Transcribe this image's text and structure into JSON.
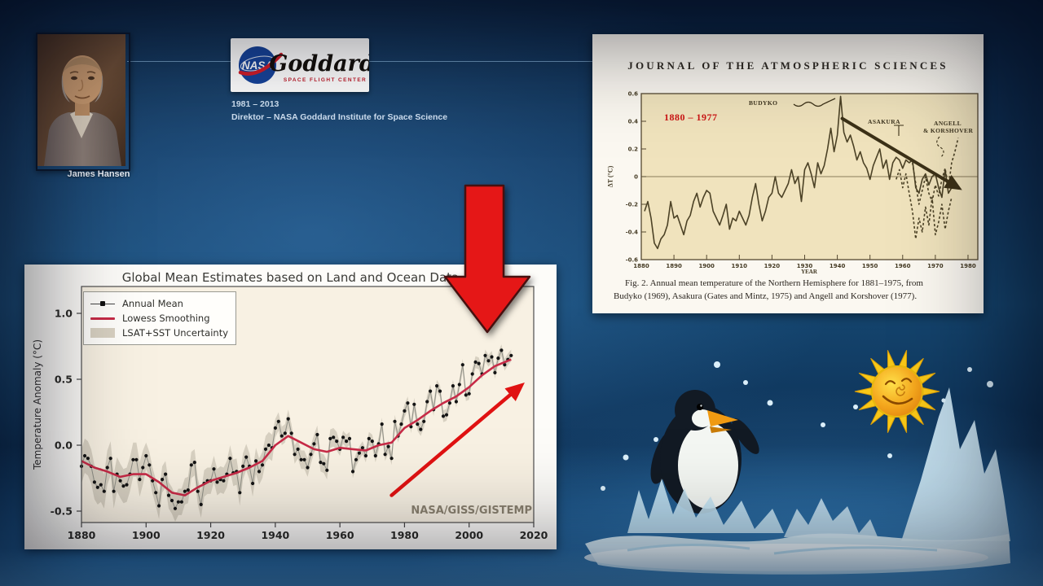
{
  "header": {
    "portrait_caption": "James Hansen",
    "logo_nasa": "NASA",
    "logo_goddard": "Goddard",
    "logo_sub": "SPACE FLIGHT CENTER",
    "tenure": "1981 – 2013",
    "role": "Direktor – NASA Goddard Institute for Space Science"
  },
  "journal": {
    "masthead": "JOURNAL OF THE ATMOSPHERIC SCIENCES",
    "range_label": "1880 – 1977",
    "label_budyko": "BUDYKO",
    "label_asakura": "ASAKURA",
    "label_angell_1": "ANGELL",
    "label_angell_2": "& KORSHOVER",
    "ylabel": "ΔT (°C)",
    "xlabel": "YEAR",
    "caption_1": "Fig. 2. Annual mean temperature of the Northern Hemisphere for 1881–1975, from",
    "caption_2": "Budyko (1969), Asakura (Gates and Mintz, 1975) and Angell and Korshover (1977)."
  },
  "gistemp": {
    "title": "Global Mean Estimates based on Land and Ocean Data",
    "legend_annual": "Annual Mean",
    "legend_lowess": "Lowess Smoothing",
    "legend_band": "LSAT+SST Uncertainty",
    "ylabel": "Temperature Anomaly (°C)",
    "watermark": "NASA/GISS/GISTEMP"
  },
  "chart_data": [
    {
      "id": "gistemp",
      "type": "line",
      "title": "Global Mean Estimates based on Land and Ocean Data",
      "xlabel": "",
      "ylabel": "Temperature Anomaly (°C)",
      "xlim": [
        1880,
        2020
      ],
      "ylim": [
        -0.61,
        1.22
      ],
      "grid": false,
      "legend_position": "upper left",
      "watermark": "NASA/GISS/GISTEMP",
      "xticks": [
        "1880",
        "1900",
        "1920",
        "1940",
        "1960",
        "1980",
        "2000",
        "2020"
      ],
      "yticks": [
        {
          "label": "1.0",
          "v": 1.0
        },
        {
          "label": "0.5",
          "v": 0.5
        },
        {
          "label": "0.0",
          "v": 0.0
        },
        {
          "label": "-0.5",
          "v": -0.5
        }
      ],
      "annual": {
        "name": "Annual Mean",
        "color": "#141414",
        "x_start": 1880,
        "values": [
          -0.16,
          -0.08,
          -0.1,
          -0.16,
          -0.28,
          -0.32,
          -0.3,
          -0.35,
          -0.17,
          -0.1,
          -0.35,
          -0.22,
          -0.27,
          -0.31,
          -0.3,
          -0.22,
          -0.11,
          -0.11,
          -0.26,
          -0.17,
          -0.08,
          -0.15,
          -0.27,
          -0.36,
          -0.46,
          -0.26,
          -0.22,
          -0.38,
          -0.42,
          -0.48,
          -0.43,
          -0.43,
          -0.35,
          -0.34,
          -0.15,
          -0.13,
          -0.35,
          -0.45,
          -0.29,
          -0.27,
          -0.27,
          -0.18,
          -0.28,
          -0.26,
          -0.27,
          -0.22,
          -0.1,
          -0.21,
          -0.2,
          -0.36,
          -0.16,
          -0.09,
          -0.16,
          -0.29,
          -0.12,
          -0.2,
          -0.15,
          -0.03,
          0.0,
          -0.02,
          0.13,
          0.18,
          0.07,
          0.09,
          0.2,
          0.09,
          -0.07,
          -0.03,
          -0.11,
          -0.11,
          -0.17,
          -0.07,
          0.01,
          0.08,
          -0.13,
          -0.14,
          -0.19,
          0.05,
          0.06,
          0.03,
          -0.03,
          0.06,
          0.03,
          0.05,
          -0.2,
          -0.11,
          -0.06,
          -0.02,
          -0.08,
          0.05,
          0.03,
          -0.08,
          0.01,
          0.16,
          -0.07,
          -0.01,
          -0.1,
          0.18,
          0.07,
          0.16,
          0.26,
          0.32,
          0.14,
          0.31,
          0.16,
          0.12,
          0.18,
          0.33,
          0.41,
          0.27,
          0.45,
          0.41,
          0.22,
          0.23,
          0.32,
          0.45,
          0.33,
          0.46,
          0.61,
          0.38,
          0.39,
          0.54,
          0.63,
          0.62,
          0.54,
          0.68,
          0.64,
          0.67,
          0.55,
          0.66,
          0.72,
          0.61,
          0.65,
          0.68
        ]
      },
      "lowess": {
        "name": "Lowess Smoothing",
        "color": "#c72b47",
        "x": [
          1880,
          1884,
          1888,
          1892,
          1896,
          1900,
          1904,
          1908,
          1912,
          1916,
          1920,
          1924,
          1928,
          1932,
          1936,
          1940,
          1944,
          1948,
          1952,
          1956,
          1960,
          1964,
          1968,
          1972,
          1976,
          1980,
          1984,
          1988,
          1992,
          1996,
          2000,
          2004,
          2008,
          2012,
          2013
        ],
        "values": [
          -0.12,
          -0.17,
          -0.2,
          -0.24,
          -0.22,
          -0.22,
          -0.28,
          -0.36,
          -0.38,
          -0.32,
          -0.27,
          -0.24,
          -0.21,
          -0.17,
          -0.12,
          0.0,
          0.07,
          0.02,
          -0.03,
          -0.05,
          -0.02,
          -0.03,
          -0.04,
          0.0,
          0.02,
          0.13,
          0.19,
          0.26,
          0.32,
          0.37,
          0.44,
          0.53,
          0.6,
          0.64,
          0.65
        ]
      },
      "uncertainty": {
        "name": "LSAT+SST Uncertainty",
        "color": "#d8d1c2",
        "halfwidth_breaks": [
          [
            1880,
            0.13
          ],
          [
            1900,
            0.1
          ],
          [
            1940,
            0.07
          ],
          [
            1960,
            0.05
          ],
          [
            1990,
            0.045
          ]
        ]
      },
      "trend_arrow": {
        "x1": 1976,
        "y1": -0.38,
        "x2": 2016,
        "y2": 0.45,
        "color": "#e01212"
      }
    },
    {
      "id": "budyko-fig2",
      "type": "line",
      "title": "Annual mean temperature of the Northern Hemisphere, 1881–1975",
      "xlabel": "YEAR",
      "ylabel": "ΔT (°C)",
      "xlim": [
        1880,
        1983
      ],
      "ylim": [
        -0.6,
        0.6
      ],
      "grid": false,
      "range_label": "1880 – 1977",
      "xticks": [
        "1880",
        "1890",
        "1900",
        "1910",
        "1920",
        "1930",
        "1940",
        "1950",
        "1960",
        "1970",
        "1980"
      ],
      "yticks": [
        {
          "label": "0.6",
          "v": 0.6
        },
        {
          "label": "0.4",
          "v": 0.4
        },
        {
          "label": "0.2",
          "v": 0.2
        },
        {
          "label": "0",
          "v": 0.0
        },
        {
          "label": "-0.2",
          "v": -0.2
        },
        {
          "label": "-0.4",
          "v": -0.4
        },
        {
          "label": "-0.6",
          "v": -0.6
        }
      ],
      "series": [
        {
          "name": "Budyko (1969)",
          "dash": "none",
          "color": "#4c4226",
          "x_start": 1881,
          "values": [
            -0.25,
            -0.18,
            -0.3,
            -0.48,
            -0.52,
            -0.45,
            -0.42,
            -0.35,
            -0.18,
            -0.3,
            -0.28,
            -0.35,
            -0.42,
            -0.32,
            -0.28,
            -0.18,
            -0.12,
            -0.22,
            -0.15,
            -0.1,
            -0.12,
            -0.25,
            -0.3,
            -0.35,
            -0.28,
            -0.2,
            -0.38,
            -0.3,
            -0.32,
            -0.25,
            -0.3,
            -0.35,
            -0.28,
            -0.15,
            -0.05,
            -0.2,
            -0.32,
            -0.25,
            -0.15,
            -0.12,
            0.0,
            -0.12,
            -0.15,
            -0.1,
            -0.05,
            0.05,
            -0.05,
            0.0,
            -0.18,
            0.05,
            0.1,
            0.02,
            -0.08,
            0.1,
            0.02,
            0.08,
            0.2,
            0.35,
            0.18,
            0.3,
            0.58,
            0.32,
            0.25,
            0.3,
            0.22,
            0.12,
            0.18,
            0.1,
            0.06,
            -0.02,
            0.08,
            0.14,
            0.2,
            0.06,
            0.12,
            -0.02,
            0.1,
            0.14,
            0.12,
            0.06,
            0.12,
            0.1,
            0.12,
            -0.08,
            -0.12,
            -0.02,
            0.02,
            -0.06,
            0.0,
            0.02,
            -0.08,
            -0.15,
            0.05,
            -0.12,
            -0.08
          ]
        },
        {
          "name": "Asakura (Gates and Mintz, 1975)",
          "dash": "3,2.6",
          "color": "#4c4226",
          "x_start": 1958,
          "values": [
            -0.02,
            0.05,
            -0.08,
            0.02,
            -0.12,
            -0.25,
            -0.45,
            -0.3,
            -0.4,
            -0.22,
            -0.35,
            -0.15,
            -0.42,
            -0.33,
            -0.2,
            -0.38,
            -0.25,
            -0.15
          ]
        },
        {
          "name": "Angell and Korshover (1977)",
          "dash": "3,2.6",
          "color": "#4c4226",
          "x_start": 1963,
          "values": [
            0.1,
            -0.05,
            -0.2,
            -0.1,
            0.0,
            -0.12,
            -0.18,
            -0.06,
            -0.14,
            -0.02,
            0.06,
            -0.08,
            0.1,
            0.18,
            0.28
          ]
        }
      ],
      "trend_arrow": {
        "x1": 1941.5,
        "y1": 0.42,
        "x2": 1977,
        "y2": -0.08,
        "color": "#3c3117"
      }
    }
  ]
}
